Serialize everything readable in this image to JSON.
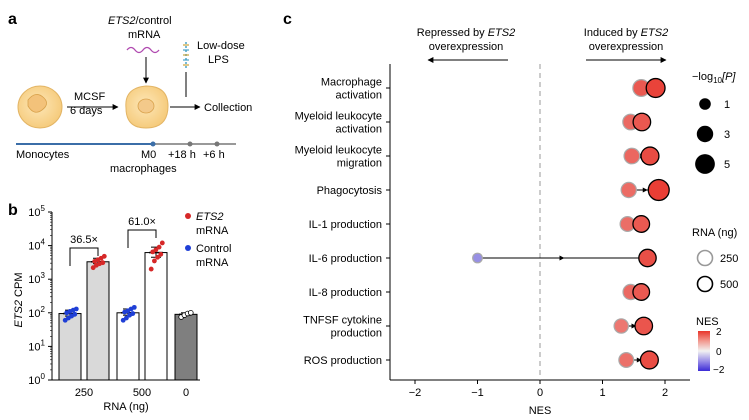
{
  "panel_a": {
    "letter": "a",
    "mrna_label_part1": "ETS2",
    "mrna_label_part2": "/control",
    "mrna_label_line2": "mRNA",
    "lps_label_line1": "Low-dose",
    "lps_label_line2": "LPS",
    "mcsf_line1": "MCSF",
    "mcsf_line2": "6 days",
    "collection_label": "Collection",
    "monocytes_label": "Monocytes",
    "m0_line1": "M0",
    "m0_line2": "macrophages",
    "t18_label": "+18 h",
    "t6_label": "+6 h"
  },
  "panel_b": {
    "letter": "b",
    "fold1": "36.5×",
    "fold2": "61.0×",
    "legend_ets2_line1": "ETS2",
    "legend_ets2_line2": "mRNA",
    "legend_control_line1": "Control",
    "legend_control_line2": "mRNA",
    "ylabel_italic": "ETS2",
    "ylabel_rest": " CPM",
    "xlabel": "RNA (ng)"
  },
  "panel_c": {
    "letter": "c",
    "repressed_line1": "Repressed by ",
    "repressed_ets2": "ETS2",
    "repressed_line2": "overexpression",
    "induced_line1": "Induced by ",
    "induced_ets2": "ETS2",
    "induced_line2": "overexpression",
    "pval_legend_title_prefix": "−log",
    "pval_legend_title_sub": "10",
    "pval_legend_title_suffix": "[P]",
    "rna_legend_title": "RNA (ng)",
    "nes_legend_title": "NES",
    "nes_ticks": [
      "2",
      "0",
      "−2"
    ]
  },
  "colors": {
    "ets2_dot": "#d62828",
    "control_dot": "#1f3fd6",
    "bar_light": "#d9d9d9",
    "bar_dark": "#7f7f7f",
    "timeline": "#3b6ea8",
    "nes_high": "#e8352b",
    "nes_mid": "#f2f2f2",
    "nes_low": "#3b2bd6",
    "mrna_wave": "#b04ab0",
    "lps": "#4aa3c8"
  },
  "chart_data": [
    {
      "type": "bar",
      "panel": "b",
      "yscale": "log",
      "ylim": [
        1,
        100000
      ],
      "yticks": [
        "10^0",
        "10^1",
        "10^2",
        "10^3",
        "10^4",
        "10^5"
      ],
      "ylabel": "ETS2 CPM",
      "xlabel": "RNA (ng)",
      "groups": [
        "250",
        "500",
        "0"
      ],
      "bars": [
        {
          "group": "250",
          "condition": "Control mRNA",
          "value": 95,
          "points": [
            60,
            70,
            80,
            90,
            100,
            110,
            120,
            130
          ]
        },
        {
          "group": "250",
          "condition": "ETS2 mRNA",
          "value": 3300,
          "points": [
            2200,
            2600,
            2900,
            3100,
            3400,
            3800,
            4200,
            4800
          ]
        },
        {
          "group": "500",
          "condition": "Control mRNA",
          "value": 100,
          "points": [
            60,
            70,
            85,
            95,
            105,
            115,
            130,
            145
          ]
        },
        {
          "group": "500",
          "condition": "ETS2 mRNA",
          "value": 6200,
          "points": [
            2000,
            3500,
            4500,
            5500,
            6500,
            7500,
            9000,
            12000
          ]
        },
        {
          "group": "0",
          "condition": "untransfected",
          "value": 90,
          "points": [
            75,
            85,
            95,
            100
          ]
        }
      ],
      "annotations": [
        {
          "between": [
            "250 Control",
            "250 ETS2"
          ],
          "text": "36.5×"
        },
        {
          "between": [
            "500 Control",
            "500 ETS2"
          ],
          "text": "61.0×"
        }
      ],
      "legend": [
        "ETS2 mRNA",
        "Control mRNA"
      ]
    },
    {
      "type": "scatter",
      "panel": "c",
      "xlabel": "NES",
      "xlim": [
        -2.4,
        2.4
      ],
      "xticks": [
        -2,
        -1,
        0,
        1,
        2
      ],
      "tick_labels": [
        "−2",
        "−1",
        "0",
        "1",
        "2"
      ],
      "categories": [
        "Macrophage activation",
        "Myeloid leukocyte activation",
        "Myeloid leukocyte migration",
        "Phagocytosis",
        "IL-1 production",
        "IL-6 production",
        "IL-8 production",
        "TNFSF cytokine production",
        "ROS production"
      ],
      "category_label_lines": [
        [
          "Macrophage",
          "activation"
        ],
        [
          "Myeloid leukocyte",
          "activation"
        ],
        [
          "Myeloid leukocyte",
          "migration"
        ],
        [
          "Phagocytosis"
        ],
        [
          "IL-1 production"
        ],
        [
          "IL-6 production"
        ],
        [
          "IL-8 production"
        ],
        [
          "TNFSF cytokine",
          "production"
        ],
        [
          "ROS production"
        ]
      ],
      "series": [
        {
          "rna_ng": 250,
          "nes": [
            1.62,
            1.45,
            1.47,
            1.42,
            1.4,
            -1.0,
            1.45,
            1.3,
            1.38
          ],
          "neglog10p": [
            3.2,
            2.6,
            2.6,
            2.4,
            2.2,
            0.5,
            2.4,
            2.0,
            2.2
          ]
        },
        {
          "rna_ng": 500,
          "nes": [
            1.85,
            1.63,
            1.76,
            1.9,
            1.62,
            1.72,
            1.62,
            1.66,
            1.75
          ],
          "neglog10p": [
            4.4,
            3.6,
            3.8,
            5.8,
            3.1,
            3.5,
            3.1,
            3.6,
            3.8
          ]
        }
      ],
      "size_legend": {
        "title": "−log10[P]",
        "values": [
          "1",
          "3",
          "5"
        ]
      },
      "rna_legend": {
        "title": "RNA (ng)",
        "values": [
          "250",
          "500"
        ]
      },
      "color_legend": {
        "title": "NES",
        "range": [
          -2,
          2
        ]
      }
    }
  ]
}
